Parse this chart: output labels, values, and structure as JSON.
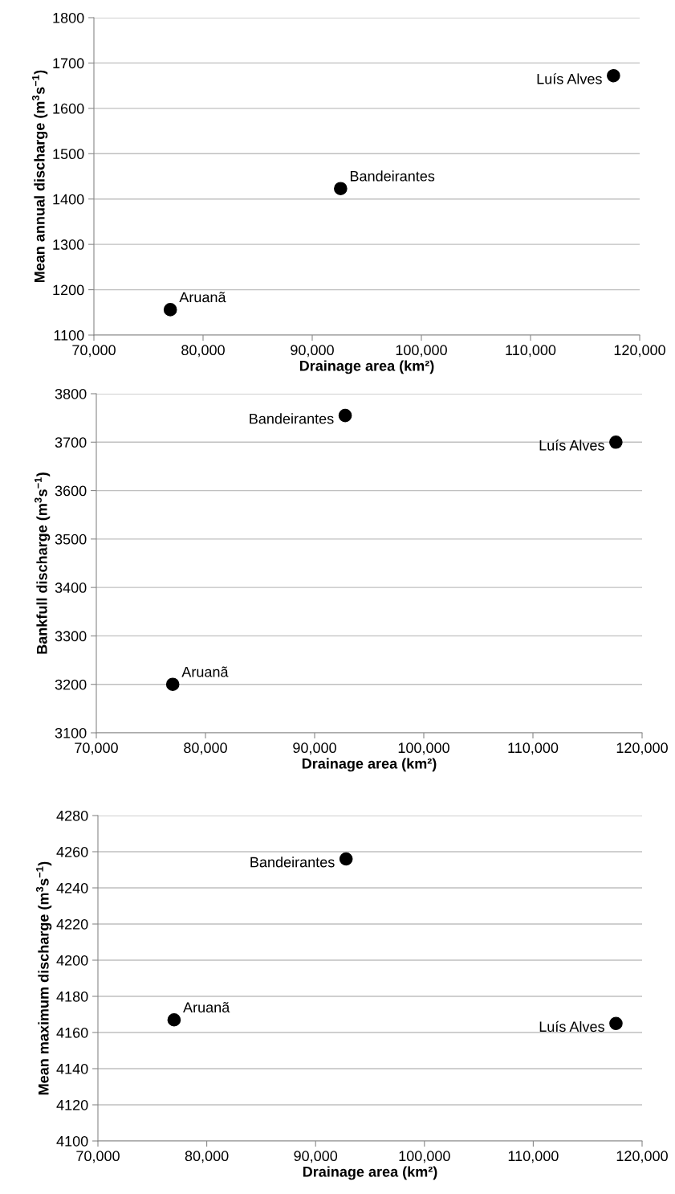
{
  "chart_data": [
    {
      "type": "scatter",
      "xlabel": "Drainage area (km²)",
      "ylabel": "Mean annual discharge (m$^{3}$s$^{−1}$)",
      "marker": "circle",
      "grid": "y",
      "legend": false,
      "series": [
        {
          "color": "#000000",
          "x": [
            77000,
            92600,
            117600
          ],
          "values": [
            1156,
            1423,
            1672
          ]
        }
      ],
      "annotations": [
        {
          "text": "Aruanã",
          "x": 77000,
          "y": 1156
        },
        {
          "text": "Bandeirantes",
          "x": 92600,
          "y": 1423
        },
        {
          "text": "Luís Alves",
          "x": 117600,
          "y": 1672
        }
      ],
      "xlim": [
        70000,
        120000
      ],
      "xticks": [
        {
          "value": 70000,
          "label": "70,000"
        },
        {
          "value": 80000,
          "label": "80,000"
        },
        {
          "value": 90000,
          "label": "90,000"
        },
        {
          "value": 100000,
          "label": "100,000"
        },
        {
          "value": 110000,
          "label": "110,000"
        },
        {
          "value": 120000,
          "label": "120,000"
        }
      ],
      "ylim": [
        1100,
        1800
      ],
      "yticks": [
        1100,
        1200,
        1300,
        1400,
        1500,
        1600,
        1700,
        1800
      ]
    },
    {
      "type": "scatter",
      "xlabel": "Drainage area (km²)",
      "ylabel": "Bankfull discharge (m$^{3}$s$^{−1}$)",
      "marker": "circle",
      "grid": "y",
      "legend": false,
      "series": [
        {
          "color": "#000000",
          "x": [
            77000,
            92800,
            117600
          ],
          "values": [
            3200,
            3755,
            3700
          ]
        }
      ],
      "annotations": [
        {
          "text": "Aruanã",
          "x": 77000,
          "y": 3200
        },
        {
          "text": "Bandeirantes",
          "x": 92800,
          "y": 3755
        },
        {
          "text": "Luís Alves",
          "x": 117600,
          "y": 3700
        }
      ],
      "xlim": [
        70000,
        120000
      ],
      "xticks": [
        {
          "value": 70000,
          "label": "70,000"
        },
        {
          "value": 80000,
          "label": "80,000"
        },
        {
          "value": 90000,
          "label": "90,000"
        },
        {
          "value": 100000,
          "label": "100,000"
        },
        {
          "value": 110000,
          "label": "110,000"
        },
        {
          "value": 120000,
          "label": "120,000"
        }
      ],
      "ylim": [
        3100,
        3800
      ],
      "yticks": [
        3100,
        3200,
        3300,
        3400,
        3500,
        3600,
        3700,
        3800
      ]
    },
    {
      "type": "scatter",
      "xlabel": "Drainage area (km²)",
      "ylabel": "Mean maximum discharge (m$^{3}$s$^{−1}$)",
      "marker": "circle",
      "grid": "y",
      "legend": false,
      "series": [
        {
          "color": "#000000",
          "x": [
            77000,
            92800,
            117600
          ],
          "values": [
            4167,
            4256,
            4165
          ]
        }
      ],
      "annotations": [
        {
          "text": "Aruanã",
          "x": 77000,
          "y": 4167
        },
        {
          "text": "Bandeirantes",
          "x": 92800,
          "y": 4256
        },
        {
          "text": "Luís Alves",
          "x": 117600,
          "y": 4165
        }
      ],
      "xlim": [
        70000,
        120000
      ],
      "xticks": [
        {
          "value": 70000,
          "label": "70,000"
        },
        {
          "value": 80000,
          "label": "80,000"
        },
        {
          "value": 90000,
          "label": "90,000"
        },
        {
          "value": 100000,
          "label": "100,000"
        },
        {
          "value": 110000,
          "label": "110,000"
        },
        {
          "value": 120000,
          "label": "120,000"
        }
      ],
      "ylim": [
        4100,
        4280
      ],
      "yticks": [
        4100,
        4120,
        4140,
        4160,
        4180,
        4200,
        4220,
        4240,
        4260,
        4280
      ]
    }
  ]
}
